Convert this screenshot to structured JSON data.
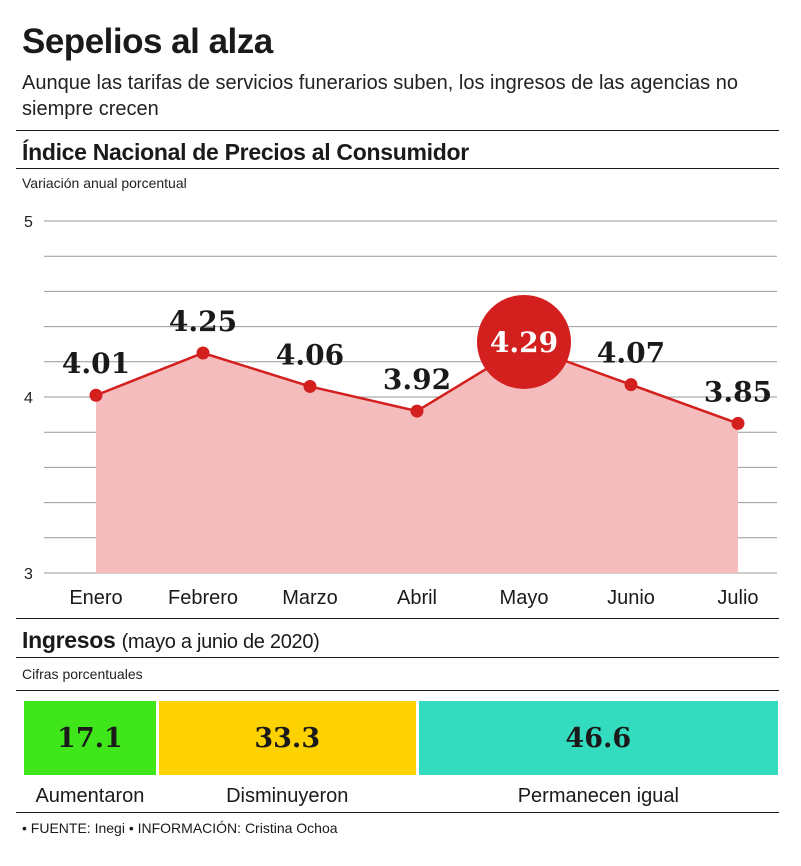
{
  "title": "Sepelios al alza",
  "subtitle": "Aunque las tarifas de servicios funerarios suben, los ingresos de las agencias no siempre crecen",
  "inpc": {
    "section_title": "Índice Nacional de Precios al Consumidor",
    "unit_note": "Variación anual porcentual"
  },
  "chart_data": {
    "type": "area",
    "title": "Índice Nacional de Precios al Consumidor",
    "ylabel": "Variación anual porcentual",
    "xlabel": "",
    "categories": [
      "Enero",
      "Febrero",
      "Marzo",
      "Abril",
      "Mayo",
      "Junio",
      "Julio"
    ],
    "values": [
      4.01,
      4.25,
      4.06,
      3.92,
      4.29,
      4.07,
      3.85
    ],
    "value_labels": [
      "4.01",
      "4.25",
      "4.06",
      "3.92",
      "4.29",
      "4.07",
      "3.85"
    ],
    "highlight_index": 4,
    "ylim": [
      3,
      5
    ],
    "yticks": [
      3,
      4,
      5
    ],
    "ytick_labels": [
      "3",
      "4",
      "5"
    ],
    "grid": true,
    "colors": {
      "line": "#d41f1f",
      "fill": "#f4bcbc",
      "highlight": "#d41f1f",
      "grid": "#999999"
    }
  },
  "ingresos": {
    "section_title": "Ingresos",
    "section_note": "(mayo a junio de 2020)",
    "unit_note": "Cifras porcentuales",
    "segments": [
      {
        "label": "Aumentaron",
        "value": 17.1,
        "value_text": "17.1",
        "color": "#3fe619"
      },
      {
        "label": "Disminuyeron",
        "value": 33.3,
        "value_text": "33.3",
        "color": "#fed200"
      },
      {
        "label": "Permanecen igual",
        "value": 46.6,
        "value_text": "46.6",
        "color": "#33dbbf"
      }
    ]
  },
  "footer": "• FUENTE: Inegi • INFORMACIÓN: Cristina Ochoa"
}
